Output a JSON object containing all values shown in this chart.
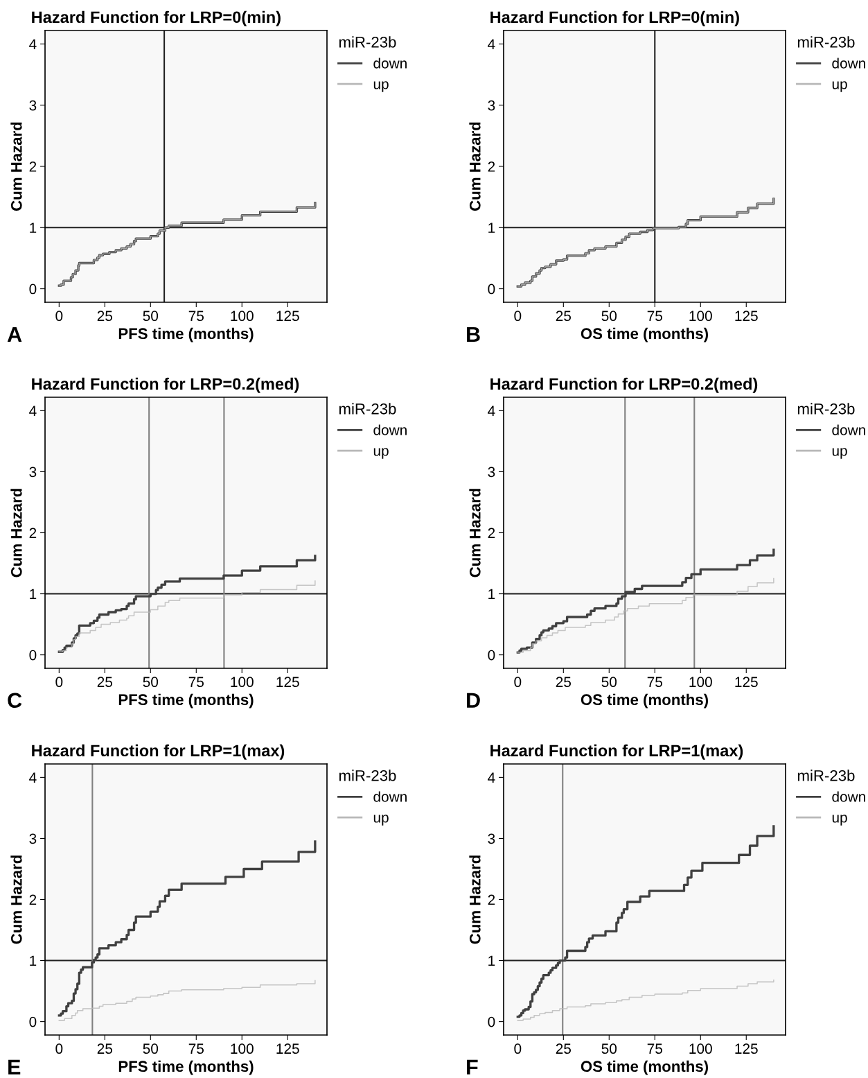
{
  "chart_data": [
    {
      "type": "step",
      "title": "Hazard Function for LRP=0(min)",
      "xlabel": "PFS time (months)",
      "ylabel": "Cum Hazard",
      "legend_title": "miR-23b",
      "legend": "right",
      "xlim": [
        -7.7,
        146.5
      ],
      "ylim": [
        -0.22,
        4.22
      ],
      "xticks": [
        0,
        25,
        50,
        75,
        100,
        125
      ],
      "yticks": [
        0,
        1,
        2,
        3,
        4
      ],
      "grid": false,
      "annotations": [
        "A"
      ],
      "ref_lines": [
        {
          "axis": "y",
          "value": 1,
          "color": "#202020"
        },
        {
          "axis": "x",
          "value": 57.5,
          "color": "#202020"
        }
      ],
      "series": [
        {
          "name": "down",
          "color": "#404040",
          "x": [
            0,
            1,
            2.5,
            6.5,
            7.5,
            9,
            10.5,
            11,
            19,
            21,
            22,
            24,
            27.5,
            31,
            34,
            37,
            39,
            41,
            42,
            50,
            54,
            55,
            58,
            60,
            67,
            90,
            100,
            110,
            130,
            140
          ],
          "values": [
            0.05,
            0.07,
            0.13,
            0.19,
            0.24,
            0.3,
            0.38,
            0.42,
            0.47,
            0.51,
            0.55,
            0.57,
            0.6,
            0.63,
            0.66,
            0.69,
            0.73,
            0.78,
            0.82,
            0.86,
            0.9,
            0.95,
            1.0,
            1.03,
            1.08,
            1.13,
            1.2,
            1.26,
            1.33,
            1.4
          ]
        },
        {
          "name": "up",
          "color": "#b8b8b8",
          "x": [
            0,
            1,
            2.5,
            6.5,
            7.5,
            9,
            10.5,
            11,
            19,
            21,
            22,
            24,
            27.5,
            31,
            34,
            37,
            39,
            41,
            42,
            50,
            54,
            55,
            58,
            60,
            67,
            90,
            100,
            110,
            130,
            140
          ],
          "values": [
            0.05,
            0.07,
            0.13,
            0.19,
            0.24,
            0.3,
            0.38,
            0.42,
            0.47,
            0.51,
            0.55,
            0.57,
            0.6,
            0.63,
            0.66,
            0.69,
            0.73,
            0.78,
            0.82,
            0.86,
            0.9,
            0.95,
            1.0,
            1.03,
            1.08,
            1.13,
            1.2,
            1.26,
            1.33,
            1.4
          ]
        }
      ]
    },
    {
      "type": "step",
      "title": "Hazard Function for LRP=0(min)",
      "xlabel": "OS time (months)",
      "ylabel": "Cum Hazard",
      "legend_title": "miR-23b",
      "legend": "right",
      "xlim": [
        -7.7,
        146.5
      ],
      "ylim": [
        -0.22,
        4.22
      ],
      "xticks": [
        0,
        25,
        50,
        75,
        100,
        125
      ],
      "yticks": [
        0,
        1,
        2,
        3,
        4
      ],
      "grid": false,
      "annotations": [
        "B"
      ],
      "ref_lines": [
        {
          "axis": "y",
          "value": 1,
          "color": "#202020"
        },
        {
          "axis": "x",
          "value": 75,
          "color": "#202020"
        }
      ],
      "series": [
        {
          "name": "down",
          "color": "#404040",
          "x": [
            0,
            2,
            4,
            7,
            8,
            10,
            12,
            13,
            15,
            18,
            21,
            25,
            27,
            37,
            39,
            42,
            48,
            54,
            57,
            59,
            61,
            67,
            71,
            74,
            88,
            92,
            93,
            100,
            120,
            126,
            131,
            140
          ],
          "values": [
            0.04,
            0.07,
            0.1,
            0.13,
            0.2,
            0.25,
            0.3,
            0.34,
            0.36,
            0.4,
            0.46,
            0.48,
            0.54,
            0.58,
            0.63,
            0.66,
            0.69,
            0.75,
            0.8,
            0.85,
            0.9,
            0.93,
            0.96,
            0.99,
            1.01,
            1.06,
            1.12,
            1.18,
            1.25,
            1.32,
            1.39,
            1.47
          ]
        },
        {
          "name": "up",
          "color": "#b8b8b8",
          "x": [
            0,
            2,
            4,
            7,
            8,
            10,
            12,
            13,
            15,
            18,
            21,
            25,
            27,
            37,
            39,
            42,
            48,
            54,
            57,
            59,
            61,
            67,
            71,
            74,
            88,
            92,
            93,
            100,
            120,
            126,
            131,
            140
          ],
          "values": [
            0.04,
            0.07,
            0.1,
            0.13,
            0.2,
            0.25,
            0.3,
            0.34,
            0.36,
            0.4,
            0.46,
            0.48,
            0.54,
            0.58,
            0.63,
            0.66,
            0.69,
            0.75,
            0.8,
            0.85,
            0.9,
            0.93,
            0.96,
            0.99,
            1.01,
            1.06,
            1.12,
            1.18,
            1.25,
            1.32,
            1.39,
            1.47
          ]
        }
      ]
    },
    {
      "type": "step",
      "title": "Hazard Function for LRP=0.2(med)",
      "xlabel": "PFS time (months)",
      "ylabel": "Cum Hazard",
      "legend_title": "miR-23b",
      "legend": "right",
      "xlim": [
        -7.7,
        146.5
      ],
      "ylim": [
        -0.22,
        4.22
      ],
      "xticks": [
        0,
        25,
        50,
        75,
        100,
        125
      ],
      "yticks": [
        0,
        1,
        2,
        3,
        4
      ],
      "grid": false,
      "annotations": [
        "C"
      ],
      "ref_lines": [
        {
          "axis": "y",
          "value": 1,
          "color": "#202020"
        },
        {
          "axis": "x",
          "value": 49.2,
          "color": "#808080"
        },
        {
          "axis": "x",
          "value": 90.2,
          "color": "#808080"
        }
      ],
      "series": [
        {
          "name": "down",
          "color": "#404040",
          "x": [
            0,
            2,
            3,
            4,
            7,
            8,
            9,
            10,
            11,
            17,
            19,
            21,
            22,
            27,
            31,
            34,
            37,
            38,
            41,
            42,
            50,
            53,
            54,
            56,
            58,
            66,
            90,
            100,
            110,
            130,
            140
          ],
          "values": [
            0.05,
            0.08,
            0.12,
            0.15,
            0.2,
            0.27,
            0.32,
            0.35,
            0.48,
            0.52,
            0.56,
            0.61,
            0.66,
            0.7,
            0.73,
            0.75,
            0.8,
            0.84,
            0.91,
            0.96,
            1.0,
            1.06,
            1.1,
            1.15,
            1.2,
            1.25,
            1.3,
            1.38,
            1.45,
            1.55,
            1.62
          ]
        },
        {
          "name": "up",
          "color": "#b8b8b8",
          "x": [
            0,
            2,
            4,
            7,
            8,
            9,
            11,
            17,
            20,
            23,
            28,
            33,
            37,
            38,
            41,
            50,
            54,
            58,
            60,
            66,
            90,
            100,
            110,
            130,
            140
          ],
          "values": [
            0.05,
            0.07,
            0.12,
            0.18,
            0.25,
            0.3,
            0.36,
            0.4,
            0.45,
            0.5,
            0.53,
            0.57,
            0.6,
            0.64,
            0.7,
            0.74,
            0.8,
            0.86,
            0.89,
            0.93,
            0.98,
            1.02,
            1.07,
            1.14,
            1.21
          ]
        }
      ]
    },
    {
      "type": "step",
      "title": "Hazard Function for LRP=0.2(med)",
      "xlabel": "OS time (months)",
      "ylabel": "Cum Hazard",
      "legend_title": "miR-23b",
      "legend": "right",
      "xlim": [
        -7.7,
        146.5
      ],
      "ylim": [
        -0.22,
        4.22
      ],
      "xticks": [
        0,
        25,
        50,
        75,
        100,
        125
      ],
      "yticks": [
        0,
        1,
        2,
        3,
        4
      ],
      "grid": false,
      "annotations": [
        "D"
      ],
      "ref_lines": [
        {
          "axis": "y",
          "value": 1,
          "color": "#202020"
        },
        {
          "axis": "x",
          "value": 58.7,
          "color": "#808080"
        },
        {
          "axis": "x",
          "value": 96.6,
          "color": "#808080"
        }
      ],
      "series": [
        {
          "name": "down",
          "color": "#404040",
          "x": [
            0,
            1,
            2,
            5,
            8,
            10,
            12,
            13,
            14,
            17,
            19,
            21,
            25,
            27,
            38,
            40,
            42,
            48,
            54,
            55,
            57,
            59,
            64,
            68,
            90,
            92,
            95,
            100,
            120,
            127,
            131,
            140
          ],
          "values": [
            0.04,
            0.07,
            0.1,
            0.12,
            0.2,
            0.26,
            0.32,
            0.37,
            0.4,
            0.43,
            0.47,
            0.52,
            0.55,
            0.62,
            0.66,
            0.72,
            0.76,
            0.8,
            0.84,
            0.92,
            0.96,
            1.03,
            1.08,
            1.13,
            1.19,
            1.26,
            1.32,
            1.4,
            1.47,
            1.55,
            1.63,
            1.72
          ]
        },
        {
          "name": "up",
          "color": "#b8b8b8",
          "x": [
            0,
            3,
            7,
            8,
            10,
            13,
            16,
            19,
            22,
            26,
            37,
            40,
            48,
            53,
            55,
            58,
            60,
            66,
            72,
            90,
            92,
            96,
            120,
            126,
            131,
            140
          ],
          "values": [
            0.04,
            0.07,
            0.12,
            0.18,
            0.23,
            0.28,
            0.32,
            0.36,
            0.4,
            0.45,
            0.48,
            0.53,
            0.57,
            0.62,
            0.67,
            0.72,
            0.76,
            0.8,
            0.84,
            0.89,
            0.94,
            0.98,
            1.04,
            1.12,
            1.18,
            1.25
          ]
        }
      ]
    },
    {
      "type": "step",
      "title": "Hazard Function for LRP=1(max)",
      "xlabel": "PFS time (months)",
      "ylabel": "Cum Hazard",
      "legend_title": "miR-23b",
      "legend": "right",
      "xlim": [
        -7.7,
        146.5
      ],
      "ylim": [
        -0.22,
        4.22
      ],
      "xticks": [
        0,
        25,
        50,
        75,
        100,
        125
      ],
      "yticks": [
        0,
        1,
        2,
        3,
        4
      ],
      "grid": false,
      "annotations": [
        "E"
      ],
      "ref_lines": [
        {
          "axis": "y",
          "value": 1,
          "color": "#202020"
        },
        {
          "axis": "x",
          "value": 18.2,
          "color": "#808080"
        }
      ],
      "series": [
        {
          "name": "down",
          "color": "#404040",
          "x": [
            0,
            1,
            2,
            4,
            5,
            7,
            8,
            9,
            10,
            11,
            12,
            13,
            18,
            19,
            20,
            21,
            22,
            27,
            31,
            34,
            37,
            38,
            41,
            42,
            50,
            54,
            55,
            58,
            60,
            67,
            91,
            101,
            111,
            131,
            140
          ],
          "values": [
            0.1,
            0.13,
            0.17,
            0.25,
            0.3,
            0.34,
            0.46,
            0.53,
            0.62,
            0.8,
            0.85,
            0.89,
            0.97,
            1.01,
            1.05,
            1.1,
            1.2,
            1.25,
            1.3,
            1.35,
            1.42,
            1.5,
            1.62,
            1.72,
            1.8,
            1.88,
            1.97,
            2.06,
            2.16,
            2.26,
            2.37,
            2.5,
            2.62,
            2.78,
            2.95
          ]
        },
        {
          "name": "up",
          "color": "#b8b8b8",
          "x": [
            0,
            3,
            7,
            9,
            10,
            13,
            18,
            22,
            24,
            31,
            37,
            40,
            42,
            50,
            54,
            57,
            60,
            67,
            90,
            100,
            110,
            130,
            140
          ],
          "values": [
            0.02,
            0.05,
            0.1,
            0.14,
            0.18,
            0.21,
            0.22,
            0.25,
            0.28,
            0.3,
            0.33,
            0.37,
            0.4,
            0.42,
            0.44,
            0.46,
            0.5,
            0.52,
            0.54,
            0.56,
            0.6,
            0.62,
            0.67
          ]
        }
      ]
    },
    {
      "type": "step",
      "title": "Hazard Function for LRP=1(max)",
      "xlabel": "OS time (months)",
      "ylabel": "Cum Hazard",
      "legend_title": "miR-23b",
      "legend": "right",
      "xlim": [
        -7.7,
        146.5
      ],
      "ylim": [
        -0.22,
        4.22
      ],
      "xticks": [
        0,
        25,
        50,
        75,
        100,
        125
      ],
      "yticks": [
        0,
        1,
        2,
        3,
        4
      ],
      "grid": false,
      "annotations": [
        "F"
      ],
      "ref_lines": [
        {
          "axis": "y",
          "value": 1,
          "color": "#202020"
        },
        {
          "axis": "x",
          "value": 24.6,
          "color": "#808080"
        }
      ],
      "series": [
        {
          "name": "down",
          "color": "#404040",
          "x": [
            0,
            1,
            2,
            3,
            4,
            6,
            7,
            8,
            9,
            10,
            11,
            12,
            13,
            14,
            17,
            18,
            19,
            21,
            22,
            23,
            26,
            27,
            37,
            38,
            39,
            41,
            48,
            54,
            55,
            57,
            58,
            60,
            67,
            72,
            91,
            93,
            95,
            101,
            121,
            127,
            131,
            140
          ],
          "values": [
            0.08,
            0.1,
            0.14,
            0.18,
            0.2,
            0.24,
            0.33,
            0.45,
            0.48,
            0.52,
            0.58,
            0.64,
            0.7,
            0.76,
            0.8,
            0.84,
            0.88,
            0.92,
            0.96,
            1.0,
            1.05,
            1.16,
            1.22,
            1.3,
            1.36,
            1.41,
            1.48,
            1.62,
            1.7,
            1.78,
            1.84,
            1.96,
            2.05,
            2.14,
            2.24,
            2.36,
            2.47,
            2.6,
            2.73,
            2.88,
            3.04,
            3.2
          ]
        },
        {
          "name": "up",
          "color": "#b8b8b8",
          "x": [
            0,
            3,
            7,
            9,
            12,
            15,
            19,
            23,
            27,
            37,
            40,
            48,
            54,
            57,
            61,
            68,
            75,
            90,
            93,
            100,
            120,
            126,
            131,
            140
          ],
          "values": [
            0.02,
            0.04,
            0.07,
            0.1,
            0.13,
            0.15,
            0.18,
            0.21,
            0.24,
            0.26,
            0.29,
            0.31,
            0.34,
            0.36,
            0.4,
            0.43,
            0.45,
            0.47,
            0.51,
            0.54,
            0.58,
            0.62,
            0.65,
            0.68
          ]
        }
      ]
    }
  ]
}
